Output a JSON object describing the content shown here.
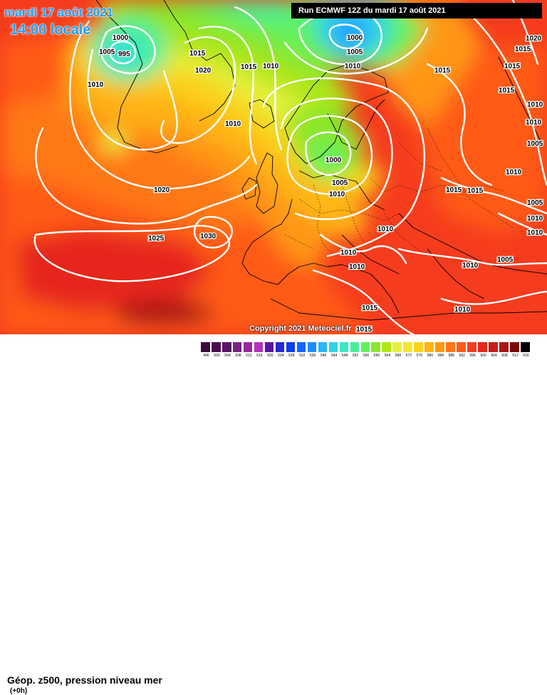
{
  "header": {
    "date": "mardi 17 août 2021",
    "time": "14:00 locale",
    "run": "Run ECMWF 12Z du mardi 17 août 2021"
  },
  "copyright": "Copyright 2021 Meteociel.fr",
  "legend": {
    "title": "Géop. z500, pression niveau mer",
    "subtitle": "(+0h)",
    "scale": [
      {
        "v": "496",
        "c": "#3c0a3c"
      },
      {
        "v": "500",
        "c": "#4b0f50"
      },
      {
        "v": "504",
        "c": "#5a1464"
      },
      {
        "v": "508",
        "c": "#782382"
      },
      {
        "v": "512",
        "c": "#9628a0"
      },
      {
        "v": "516",
        "c": "#b432b9"
      },
      {
        "v": "520",
        "c": "#5a14a0"
      },
      {
        "v": "524",
        "c": "#2828d2"
      },
      {
        "v": "528",
        "c": "#0a3cf0"
      },
      {
        "v": "532",
        "c": "#1464ff"
      },
      {
        "v": "536",
        "c": "#1e8cff"
      },
      {
        "v": "540",
        "c": "#28b4ff"
      },
      {
        "v": "544",
        "c": "#32d2e6"
      },
      {
        "v": "548",
        "c": "#3ce6c8"
      },
      {
        "v": "552",
        "c": "#46f09b"
      },
      {
        "v": "556",
        "c": "#64f05a"
      },
      {
        "v": "560",
        "c": "#8ce628"
      },
      {
        "v": "564",
        "c": "#b4e614"
      },
      {
        "v": "568",
        "c": "#e6f03c"
      },
      {
        "v": "572",
        "c": "#f5e632"
      },
      {
        "v": "576",
        "c": "#fad21e"
      },
      {
        "v": "580",
        "c": "#ffb414"
      },
      {
        "v": "584",
        "c": "#ff9614"
      },
      {
        "v": "588",
        "c": "#ff7814"
      },
      {
        "v": "592",
        "c": "#ff5a19"
      },
      {
        "v": "596",
        "c": "#f53c1e"
      },
      {
        "v": "600",
        "c": "#e6281e"
      },
      {
        "v": "604",
        "c": "#c81e19"
      },
      {
        "v": "608",
        "c": "#aa1414"
      },
      {
        "v": "612",
        "c": "#780a0a"
      },
      {
        "v": "616",
        "c": "#000000"
      }
    ]
  },
  "isobar_labels": [
    "1000",
    "995",
    "1005",
    "1010",
    "1015",
    "1020",
    "1010",
    "1015",
    "1010",
    "1000",
    "1005",
    "1010",
    "1015",
    "1015",
    "1020",
    "1015",
    "1010",
    "1000",
    "1005",
    "1010",
    "1020",
    "1025",
    "1030",
    "1015",
    "1015",
    "1010",
    "1010",
    "1010",
    "1010",
    "1010",
    "1005",
    "1005",
    "1010",
    "1010",
    "1015",
    "1015",
    "1010",
    "1005",
    "1010",
    "1015"
  ],
  "pressure_systems": {
    "high": [],
    "low": []
  }
}
